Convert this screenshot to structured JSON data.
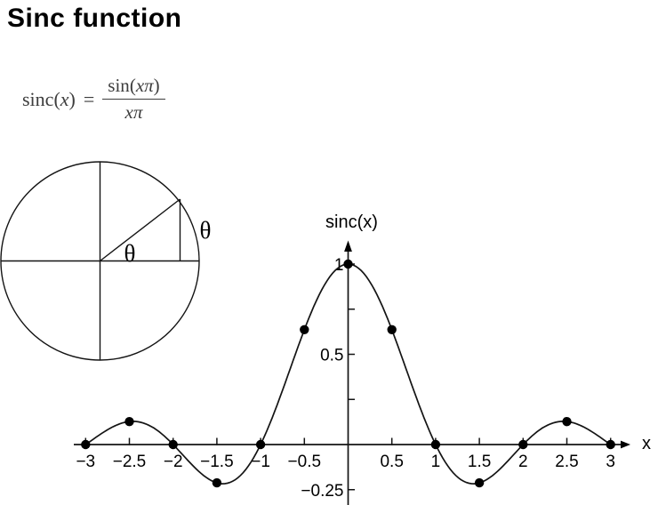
{
  "title": "Sinc function",
  "formula": {
    "fn": "sinc",
    "open": "(",
    "arg": "x",
    "close": ")",
    "eq": "=",
    "num_fn": "sin",
    "num_open": "(",
    "num_arg": "xπ",
    "num_close": ")",
    "den": "xπ"
  },
  "circle_figure": {
    "angle_label_inner": "θ",
    "angle_label_outer": "θ"
  },
  "chart_data": {
    "type": "line",
    "title": "",
    "xlabel": "x",
    "ylabel": "sinc(x)",
    "curve_formula": "sin(xπ)/(xπ)",
    "xlim": [
      -3,
      3
    ],
    "ylim": [
      -0.3,
      1.1
    ],
    "grid": false,
    "legend": "none",
    "x_ticks": [
      -3,
      -2.5,
      -2,
      -1.5,
      -1,
      -0.5,
      0.5,
      1,
      1.5,
      2,
      2.5,
      3
    ],
    "y_ticks": [
      1,
      0.75,
      0.5,
      0.25,
      -0.25
    ],
    "x_tick_labels": [
      {
        "v": -3,
        "label": "−3"
      },
      {
        "v": -2.5,
        "label": "−2.5"
      },
      {
        "v": -2,
        "label": "−2"
      },
      {
        "v": -1.5,
        "label": "−1.5"
      },
      {
        "v": -1,
        "label": "−1"
      },
      {
        "v": -0.5,
        "label": "−0.5"
      },
      {
        "v": 0.5,
        "label": "0.5"
      },
      {
        "v": 1,
        "label": "1"
      },
      {
        "v": 1.5,
        "label": "1.5"
      },
      {
        "v": 2,
        "label": "2"
      },
      {
        "v": 2.5,
        "label": "2.5"
      },
      {
        "v": 3,
        "label": "3"
      }
    ],
    "y_tick_labels": [
      {
        "v": 1,
        "label": "1"
      },
      {
        "v": 0.5,
        "label": "0.5"
      },
      {
        "v": -0.25,
        "label": "−0.25"
      }
    ],
    "points": [
      {
        "x": -3,
        "y": 0
      },
      {
        "x": -2.5,
        "y": 0.1273
      },
      {
        "x": -2,
        "y": 0
      },
      {
        "x": -1.5,
        "y": -0.2122
      },
      {
        "x": -1,
        "y": 0
      },
      {
        "x": -0.5,
        "y": 0.6366
      },
      {
        "x": 0,
        "y": 1
      },
      {
        "x": 0.5,
        "y": 0.6366
      },
      {
        "x": 1,
        "y": 0
      },
      {
        "x": 1.5,
        "y": -0.2122
      },
      {
        "x": 2,
        "y": 0
      },
      {
        "x": 2.5,
        "y": 0.1273
      },
      {
        "x": 3,
        "y": 0
      }
    ]
  }
}
